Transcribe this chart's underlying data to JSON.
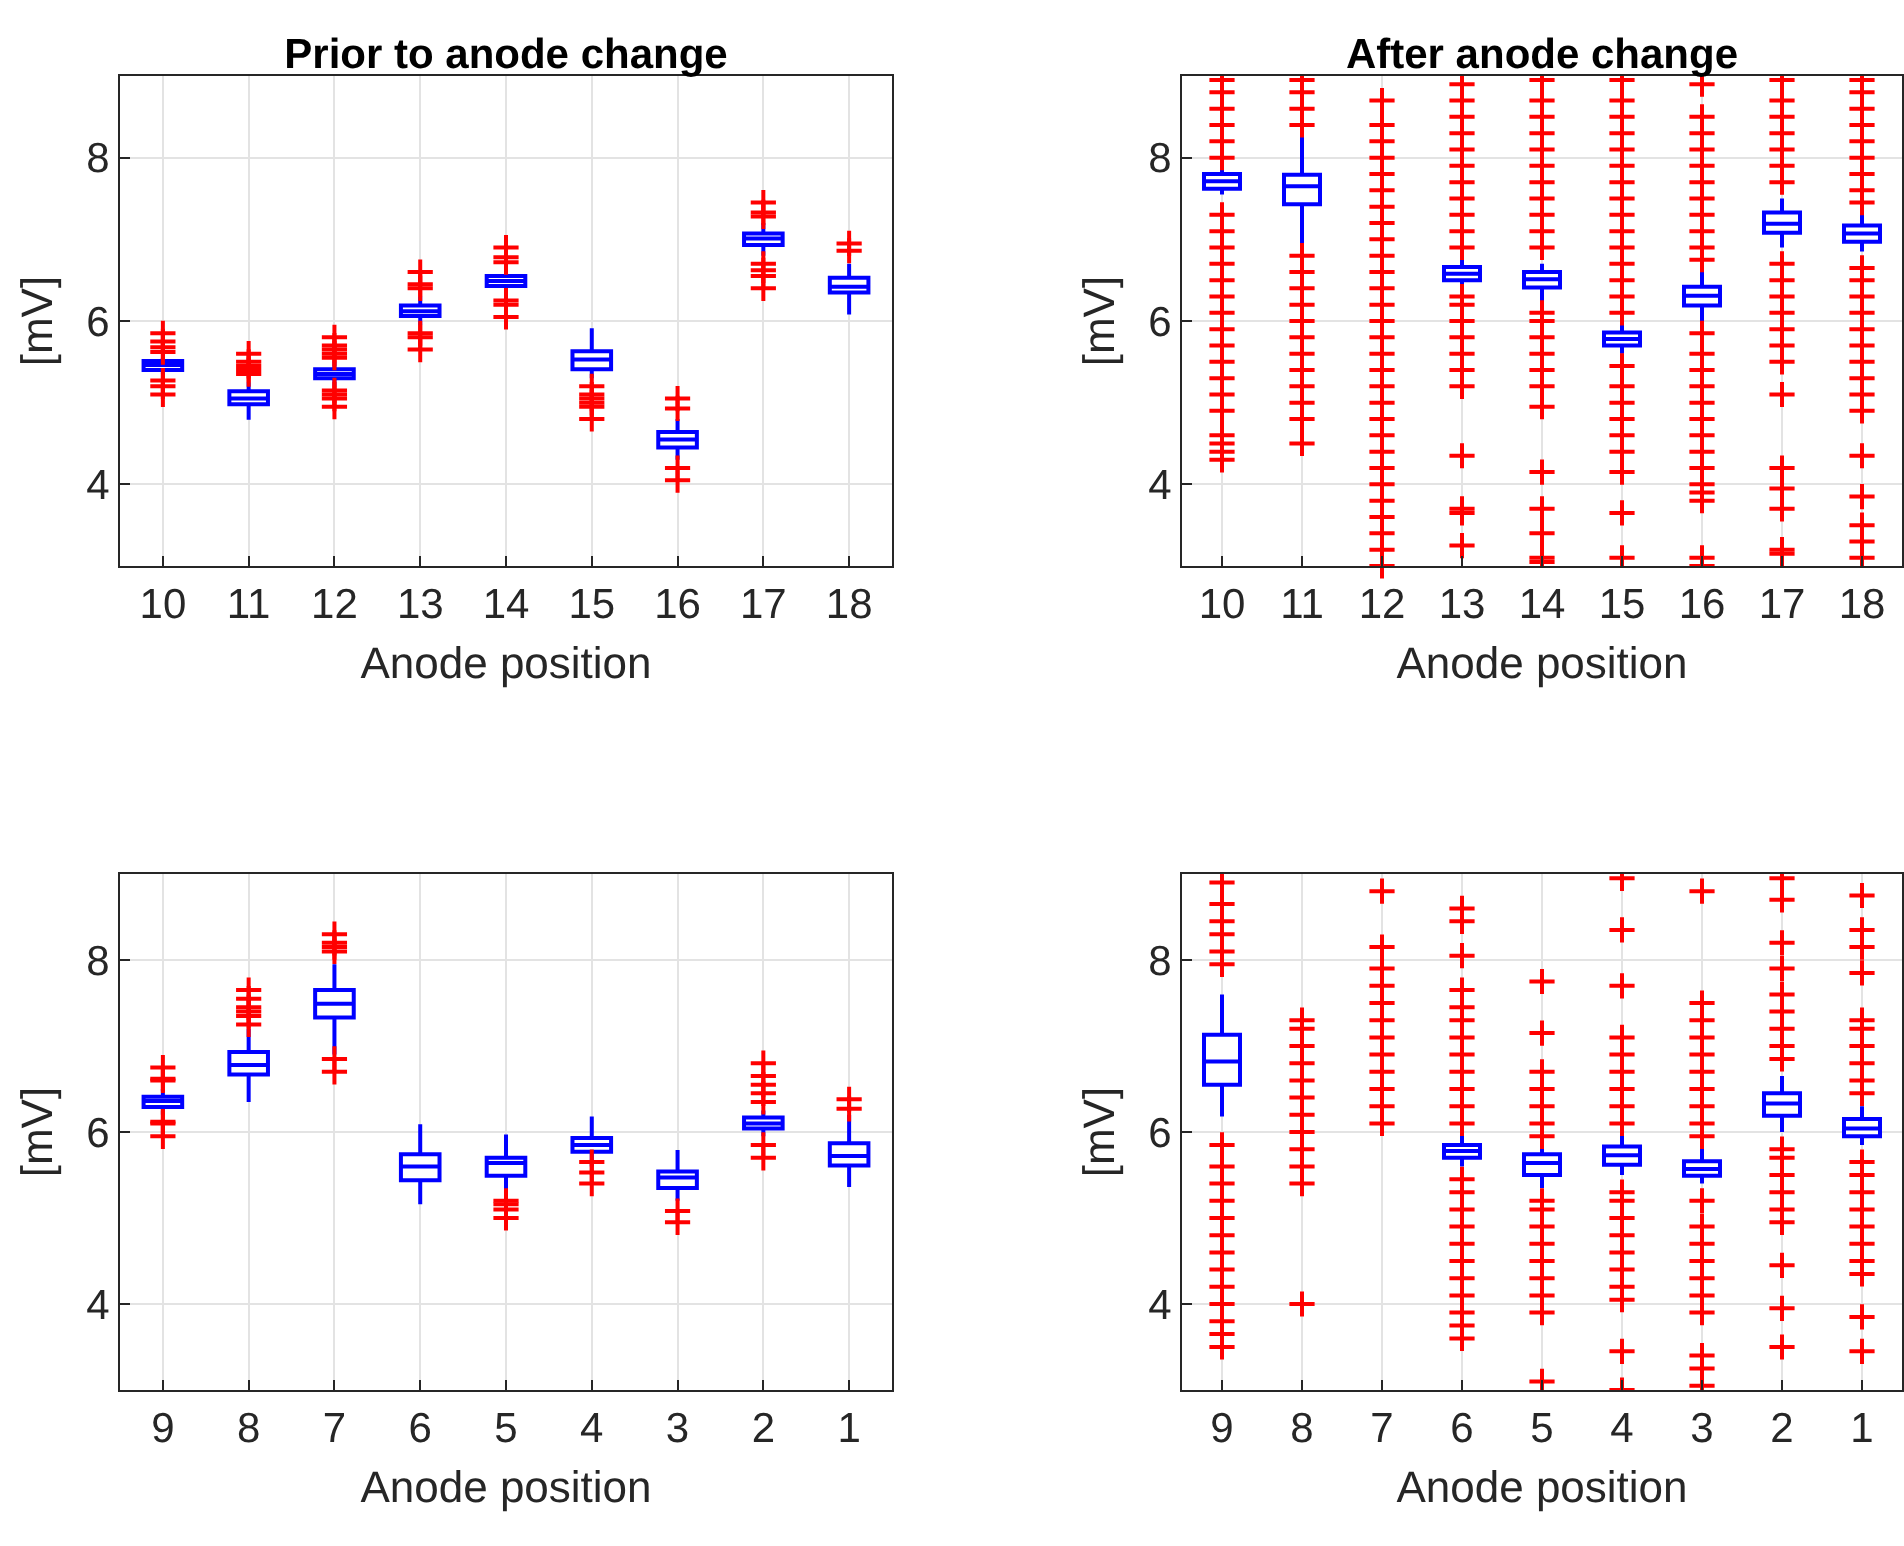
{
  "chart_data": [
    {
      "type": "box",
      "title": "Prior to anode change",
      "xlabel": "Anode position",
      "ylabel": "[mV]",
      "categories": [
        "10",
        "11",
        "12",
        "13",
        "14",
        "15",
        "16",
        "17",
        "18"
      ],
      "ylim": [
        3,
        9
      ],
      "yticks": [
        4,
        6,
        8
      ],
      "grid": true,
      "marker": "cross",
      "color": "#0000ff",
      "boxes": [
        {
          "low": 5.35,
          "q1": 5.4,
          "median": 5.46,
          "q3": 5.51,
          "high": 5.55,
          "outliers": [
            5.1,
            5.2,
            5.27,
            5.62,
            5.68,
            5.75,
            5.85
          ]
        },
        {
          "low": 4.79,
          "q1": 4.98,
          "median": 5.05,
          "q3": 5.14,
          "high": 5.25,
          "outliers": [
            5.35,
            5.4,
            5.45,
            5.5,
            5.6
          ]
        },
        {
          "low": 5.2,
          "q1": 5.3,
          "median": 5.35,
          "q3": 5.41,
          "high": 5.5,
          "outliers": [
            4.95,
            5.05,
            5.1,
            5.15,
            5.55,
            5.6,
            5.65,
            5.7,
            5.8
          ]
        },
        {
          "low": 5.95,
          "q1": 6.06,
          "median": 6.12,
          "q3": 6.19,
          "high": 6.3,
          "outliers": [
            5.65,
            5.8,
            5.85,
            6.4,
            6.45,
            6.6
          ]
        },
        {
          "low": 6.35,
          "q1": 6.43,
          "median": 6.49,
          "q3": 6.55,
          "high": 6.62,
          "outliers": [
            6.05,
            6.2,
            6.25,
            6.72,
            6.78,
            6.9
          ]
        },
        {
          "low": 5.3,
          "q1": 5.41,
          "median": 5.53,
          "q3": 5.63,
          "high": 5.91,
          "outliers": [
            4.8,
            4.95,
            5.0,
            5.05,
            5.1,
            5.2
          ]
        },
        {
          "low": 4.3,
          "q1": 4.45,
          "median": 4.55,
          "q3": 4.64,
          "high": 4.8,
          "outliers": [
            4.05,
            4.2,
            4.93,
            5.05
          ]
        },
        {
          "low": 6.8,
          "q1": 6.93,
          "median": 7.01,
          "q3": 7.07,
          "high": 7.2,
          "outliers": [
            6.4,
            6.55,
            6.62,
            6.7,
            7.28,
            7.33,
            7.45
          ]
        },
        {
          "low": 6.08,
          "q1": 6.35,
          "median": 6.42,
          "q3": 6.53,
          "high": 6.7,
          "outliers": [
            6.86,
            6.95
          ]
        }
      ]
    },
    {
      "type": "box",
      "title": "After anode change",
      "xlabel": "Anode position",
      "ylabel": "[mV]",
      "categories": [
        "10",
        "11",
        "12",
        "13",
        "14",
        "15",
        "16",
        "17",
        "18"
      ],
      "ylim": [
        3,
        9
      ],
      "yticks": [
        4,
        6,
        8
      ],
      "grid": true,
      "marker": "cross",
      "color": "#0000ff",
      "boxes": [
        {
          "low": 7.55,
          "q1": 7.62,
          "median": 7.71,
          "q3": 7.8,
          "high": 7.9,
          "outliers": [
            4.3,
            4.4,
            4.5,
            4.6,
            4.9,
            5.1,
            5.3,
            5.5,
            5.7,
            5.9,
            6.1,
            6.3,
            6.5,
            6.7,
            6.9,
            7.1,
            7.3,
            8.0,
            8.2,
            8.4,
            8.6,
            8.8,
            8.95
          ]
        },
        {
          "low": 6.93,
          "q1": 7.43,
          "median": 7.65,
          "q3": 7.79,
          "high": 8.3,
          "outliers": [
            4.5,
            4.8,
            5.0,
            5.2,
            5.4,
            5.6,
            5.8,
            6.0,
            6.2,
            6.4,
            6.6,
            6.8,
            8.4,
            8.6,
            8.8,
            8.95
          ]
        },
        null,
        {
          "low": 6.4,
          "q1": 6.5,
          "median": 6.58,
          "q3": 6.66,
          "high": 6.8,
          "outliers": [
            3.25,
            3.65,
            3.7,
            4.35,
            5.2,
            5.4,
            5.6,
            5.8,
            6.0,
            6.2,
            6.3,
            6.9,
            7.1,
            7.3,
            7.5,
            7.7,
            7.9,
            8.1,
            8.3,
            8.5,
            8.7,
            8.9
          ]
        },
        {
          "low": 6.14,
          "q1": 6.41,
          "median": 6.51,
          "q3": 6.6,
          "high": 6.7,
          "outliers": [
            3.05,
            3.1,
            3.4,
            3.7,
            4.15,
            4.95,
            5.2,
            5.4,
            5.6,
            5.8,
            6.0,
            6.1,
            6.9,
            7.1,
            7.3,
            7.5,
            7.7,
            7.9,
            8.1,
            8.3,
            8.5,
            8.7,
            8.95
          ]
        },
        {
          "low": 5.6,
          "q1": 5.7,
          "median": 5.78,
          "q3": 5.86,
          "high": 6.05,
          "outliers": [
            3.1,
            3.65,
            4.15,
            4.4,
            4.6,
            4.8,
            5.0,
            5.2,
            5.45,
            6.1,
            6.3,
            6.5,
            6.7,
            6.9,
            7.1,
            7.3,
            7.5,
            7.7,
            7.9,
            8.1,
            8.3,
            8.5,
            8.7,
            8.95
          ]
        },
        {
          "low": 6.0,
          "q1": 6.19,
          "median": 6.31,
          "q3": 6.42,
          "high": 6.6,
          "outliers": [
            3.0,
            3.1,
            3.8,
            3.9,
            4.0,
            4.2,
            4.4,
            4.6,
            4.8,
            5.0,
            5.2,
            5.4,
            5.6,
            5.85,
            6.75,
            6.9,
            7.1,
            7.3,
            7.5,
            7.7,
            7.9,
            8.1,
            8.3,
            8.5,
            8.9
          ]
        },
        {
          "low": 6.9,
          "q1": 7.08,
          "median": 7.19,
          "q3": 7.33,
          "high": 7.5,
          "outliers": [
            3.15,
            3.2,
            3.7,
            3.95,
            4.2,
            5.1,
            5.5,
            5.7,
            5.9,
            6.1,
            6.3,
            6.5,
            6.7,
            7.7,
            7.9,
            8.1,
            8.3,
            8.5,
            8.7,
            8.95
          ]
        },
        {
          "low": 6.85,
          "q1": 6.97,
          "median": 7.07,
          "q3": 7.17,
          "high": 7.3,
          "outliers": [
            3.1,
            3.3,
            3.5,
            3.85,
            4.35,
            4.9,
            5.1,
            5.3,
            5.5,
            5.7,
            5.9,
            6.1,
            6.3,
            6.5,
            6.65,
            7.45,
            7.6,
            7.8,
            8.0,
            8.2,
            8.4,
            8.6,
            8.8,
            8.95
          ]
        }
      ],
      "series": [
        {
          "type": "scatter",
          "color": "#ff0000",
          "x": [
            "12",
            "12",
            "12",
            "12",
            "12",
            "12",
            "12",
            "12",
            "12",
            "12",
            "12",
            "12",
            "12",
            "12",
            "12",
            "12",
            "12",
            "12",
            "12",
            "12",
            "12",
            "12",
            "12",
            "12",
            "12",
            "12",
            "12",
            "12",
            "12"
          ],
          "values": [
            3.0,
            3.2,
            3.4,
            3.6,
            3.8,
            4.0,
            4.2,
            4.4,
            4.6,
            4.8,
            5.0,
            5.2,
            5.4,
            5.6,
            5.8,
            6.0,
            6.2,
            6.4,
            6.6,
            6.8,
            7.0,
            7.2,
            7.4,
            7.6,
            7.8,
            8.0,
            8.2,
            8.4,
            8.7
          ]
        }
      ]
    },
    {
      "type": "box",
      "xlabel": "Anode position",
      "ylabel": "[mV]",
      "categories": [
        "9",
        "8",
        "7",
        "6",
        "5",
        "4",
        "3",
        "2",
        "1"
      ],
      "ylim": [
        3,
        9
      ],
      "yticks": [
        4,
        6,
        8
      ],
      "grid": true,
      "marker": "cross",
      "color": "#0000ff",
      "boxes": [
        {
          "low": 6.2,
          "q1": 6.29,
          "median": 6.36,
          "q3": 6.41,
          "high": 6.5,
          "outliers": [
            5.95,
            6.1,
            6.12,
            6.6,
            6.62,
            6.75
          ]
        },
        {
          "low": 6.35,
          "q1": 6.67,
          "median": 6.78,
          "q3": 6.93,
          "high": 7.2,
          "outliers": [
            7.25,
            7.35,
            7.4,
            7.45,
            7.55,
            7.65
          ]
        },
        {
          "low": 6.9,
          "q1": 7.33,
          "median": 7.49,
          "q3": 7.65,
          "high": 7.95,
          "outliers": [
            6.7,
            6.85,
            8.1,
            8.15,
            8.2,
            8.3
          ]
        },
        {
          "low": 5.16,
          "q1": 5.44,
          "median": 5.6,
          "q3": 5.74,
          "high": 6.09
        },
        {
          "low": 5.3,
          "q1": 5.49,
          "median": 5.64,
          "q3": 5.7,
          "high": 5.97,
          "outliers": [
            5.0,
            5.1,
            5.16,
            5.2
          ]
        },
        {
          "low": 5.6,
          "q1": 5.77,
          "median": 5.85,
          "q3": 5.93,
          "high": 6.18,
          "outliers": [
            5.4,
            5.53,
            5.65
          ]
        },
        {
          "low": 5.2,
          "q1": 5.35,
          "median": 5.47,
          "q3": 5.54,
          "high": 5.79,
          "outliers": [
            4.95,
            5.08
          ]
        },
        {
          "low": 5.95,
          "q1": 6.04,
          "median": 6.1,
          "q3": 6.17,
          "high": 6.25,
          "outliers": [
            5.7,
            5.85,
            6.35,
            6.45,
            6.55,
            6.65,
            6.8
          ]
        },
        {
          "low": 5.36,
          "q1": 5.61,
          "median": 5.72,
          "q3": 5.87,
          "high": 6.2,
          "outliers": [
            6.27,
            6.38
          ]
        }
      ]
    },
    {
      "type": "box",
      "xlabel": "Anode position",
      "ylabel": "[mV]",
      "categories": [
        "9",
        "8",
        "7",
        "6",
        "5",
        "4",
        "3",
        "2",
        "1"
      ],
      "ylim": [
        3,
        9
      ],
      "yticks": [
        4,
        6,
        8
      ],
      "grid": true,
      "marker": "cross",
      "color": "#0000ff",
      "boxes": [
        {
          "low": 6.18,
          "q1": 6.55,
          "median": 6.82,
          "q3": 7.13,
          "high": 7.6,
          "outliers": [
            3.5,
            3.65,
            3.8,
            4.0,
            4.2,
            4.4,
            4.6,
            4.8,
            5.0,
            5.2,
            5.4,
            5.6,
            5.85,
            7.95,
            8.1,
            8.3,
            8.45,
            8.65,
            8.9
          ]
        },
        null,
        null,
        {
          "low": 5.6,
          "q1": 5.7,
          "median": 5.78,
          "q3": 5.85,
          "high": 6.0,
          "outliers": [
            3.6,
            3.75,
            3.9,
            4.1,
            4.3,
            4.5,
            4.7,
            4.9,
            5.1,
            5.3,
            5.45,
            6.1,
            6.3,
            6.5,
            6.7,
            6.9,
            7.1,
            7.3,
            7.45,
            7.65,
            8.05,
            8.45,
            8.6
          ]
        },
        {
          "low": 5.35,
          "q1": 5.5,
          "median": 5.64,
          "q3": 5.74,
          "high": 5.9,
          "outliers": [
            3.1,
            3.9,
            4.1,
            4.3,
            4.5,
            4.7,
            4.9,
            5.1,
            5.2,
            5.95,
            6.1,
            6.3,
            6.5,
            6.7,
            7.15,
            7.75
          ]
        },
        {
          "low": 5.5,
          "q1": 5.62,
          "median": 5.73,
          "q3": 5.83,
          "high": 6.05,
          "outliers": [
            3.0,
            3.45,
            4.05,
            4.2,
            4.4,
            4.6,
            4.8,
            5.0,
            5.2,
            5.3,
            6.1,
            6.3,
            6.5,
            6.7,
            6.9,
            7.1,
            7.7,
            8.35,
            8.95
          ]
        },
        {
          "low": 5.4,
          "q1": 5.49,
          "median": 5.57,
          "q3": 5.66,
          "high": 5.85,
          "outliers": [
            3.05,
            3.25,
            3.4,
            3.9,
            4.1,
            4.3,
            4.5,
            4.7,
            4.9,
            5.2,
            5.95,
            6.1,
            6.3,
            6.5,
            6.7,
            6.9,
            7.1,
            7.3,
            7.5,
            8.8
          ]
        },
        {
          "low": 6.0,
          "q1": 6.19,
          "median": 6.33,
          "q3": 6.45,
          "high": 6.65,
          "outliers": [
            3.5,
            3.95,
            4.45,
            4.95,
            5.1,
            5.3,
            5.5,
            5.7,
            5.8,
            6.85,
            7.0,
            7.2,
            7.4,
            7.6,
            7.9,
            8.2,
            8.7,
            8.95
          ]
        },
        {
          "low": 5.85,
          "q1": 5.95,
          "median": 6.04,
          "q3": 6.15,
          "high": 6.3,
          "outliers": [
            3.45,
            3.85,
            4.35,
            4.5,
            4.7,
            4.9,
            5.1,
            5.3,
            5.5,
            5.65,
            6.45,
            6.6,
            6.8,
            7.0,
            7.2,
            7.3,
            7.85,
            8.15,
            8.35,
            8.75
          ]
        }
      ],
      "series": [
        {
          "type": "scatter",
          "color": "#ff0000",
          "x": [
            "8",
            "8",
            "8",
            "8",
            "8",
            "8",
            "8",
            "8",
            "8",
            "8",
            "8",
            "8",
            "7",
            "7",
            "7",
            "7",
            "7",
            "7",
            "7",
            "7",
            "7",
            "7",
            "7",
            "7"
          ],
          "values": [
            4.0,
            5.4,
            5.6,
            5.8,
            6.0,
            6.2,
            6.4,
            6.6,
            6.8,
            7.0,
            7.2,
            7.3,
            6.1,
            6.3,
            6.5,
            6.7,
            6.9,
            7.1,
            7.3,
            7.5,
            7.7,
            7.9,
            8.15,
            8.8
          ]
        }
      ]
    }
  ]
}
